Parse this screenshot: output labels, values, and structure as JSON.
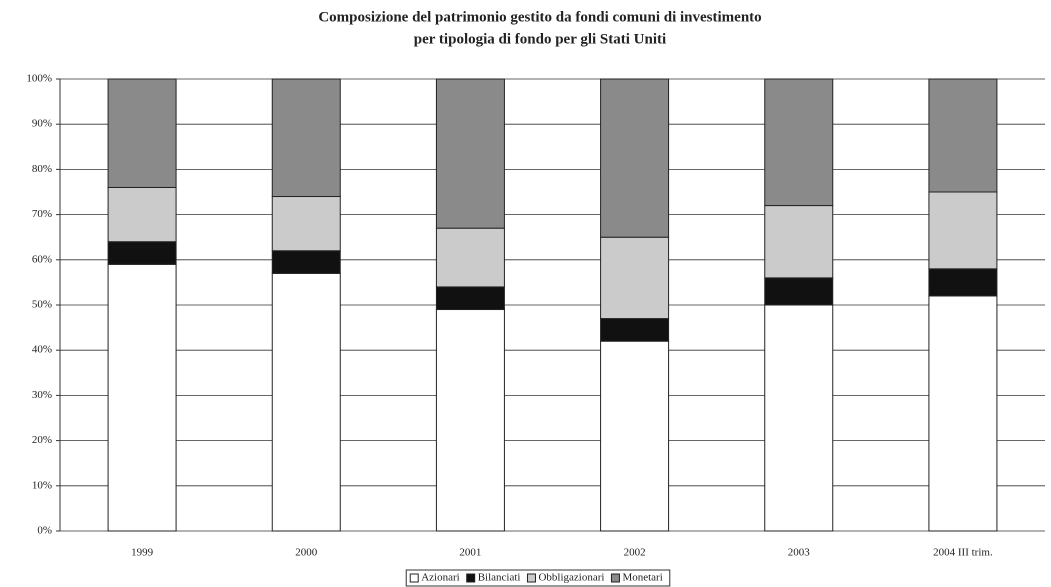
{
  "chart_data": {
    "type": "stacked_bar",
    "title": "Composizione del patrimonio gestito da fondi comuni di investimento",
    "subtitle": "per tipologia di fondo per gli Stati Uniti",
    "categories": [
      "1999",
      "2000",
      "2001",
      "2002",
      "2003",
      "2004 III trim."
    ],
    "series": [
      {
        "name": "Azionari",
        "color": "#ffffff",
        "values": [
          59,
          57,
          49,
          42,
          50,
          52
        ]
      },
      {
        "name": "Bilanciati",
        "color": "#111111",
        "values": [
          5,
          5,
          5,
          5,
          6,
          6
        ]
      },
      {
        "name": "Obbligazionari",
        "color": "#cbcbcb",
        "values": [
          12,
          12,
          13,
          18,
          16,
          17
        ]
      },
      {
        "name": "Monetari",
        "color": "#8a8a8a",
        "values": [
          24,
          26,
          33,
          35,
          28,
          25
        ]
      }
    ],
    "ylim": [
      0,
      100
    ],
    "yticks": [
      {
        "value": 0,
        "label": "0%"
      },
      {
        "value": 10,
        "label": "10%"
      },
      {
        "value": 20,
        "label": "20%"
      },
      {
        "value": 30,
        "label": "30%"
      },
      {
        "value": 40,
        "label": "40%"
      },
      {
        "value": 50,
        "label": "50%"
      },
      {
        "value": 60,
        "label": "60%"
      },
      {
        "value": 70,
        "label": "70%"
      },
      {
        "value": 80,
        "label": "80%"
      },
      {
        "value": 90,
        "label": "90%"
      },
      {
        "value": 100,
        "label": "100%"
      }
    ],
    "grid": true,
    "legend": "bottom"
  }
}
